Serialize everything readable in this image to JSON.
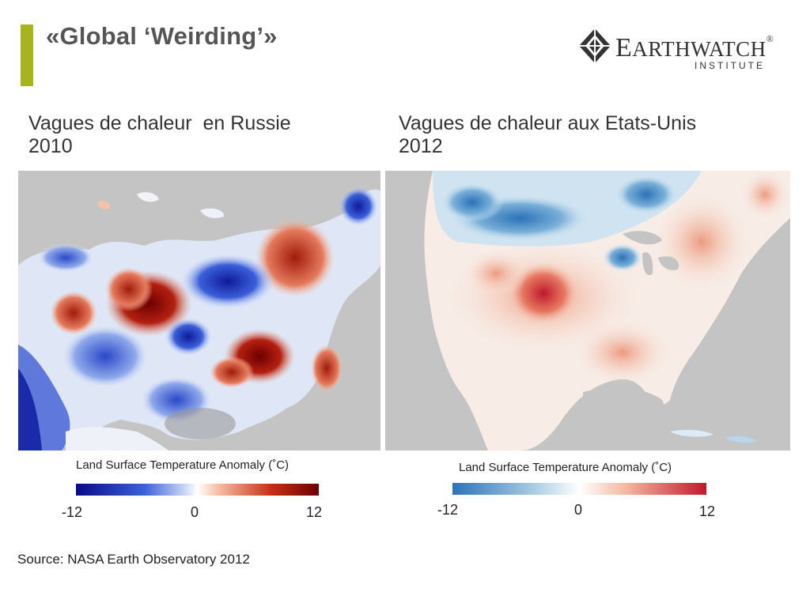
{
  "slide": {
    "title": "«Global ‘Weirding’»",
    "source": "Source: NASA Earth Observatory 2012"
  },
  "logo": {
    "name_first": "E",
    "name_rest": "ARTHWATCH",
    "registered": "®",
    "sub": "INSTITUTE"
  },
  "colors": {
    "accent": "#a4b51d",
    "background": "#ffffff",
    "map_background": "#c4c4c4",
    "russia_scale": [
      "#0a0a8a",
      "#3b5fd9",
      "#c9d8f5",
      "#ffffff",
      "#f6c3a8",
      "#c8301a",
      "#6e0000"
    ],
    "usa_scale": [
      "#2b72b8",
      "#a9cce3",
      "#ffffff",
      "#f4b9a0",
      "#c0182b"
    ]
  },
  "panels": [
    {
      "caption": "Vagues de chaleur  en Russie\n2010",
      "map_icon": "russia-lst-anomaly-map",
      "legend": {
        "title": "Land Surface Temperature Anomaly (˚C)",
        "min": "-12",
        "mid": "0",
        "max": "12"
      }
    },
    {
      "caption": "Vagues de chaleur aux Etats-Unis\n2012",
      "map_icon": "usa-lst-anomaly-map",
      "legend": {
        "title": "Land Surface Temperature Anomaly (˚C)",
        "min": "-12",
        "mid": "0",
        "max": "12"
      }
    }
  ]
}
